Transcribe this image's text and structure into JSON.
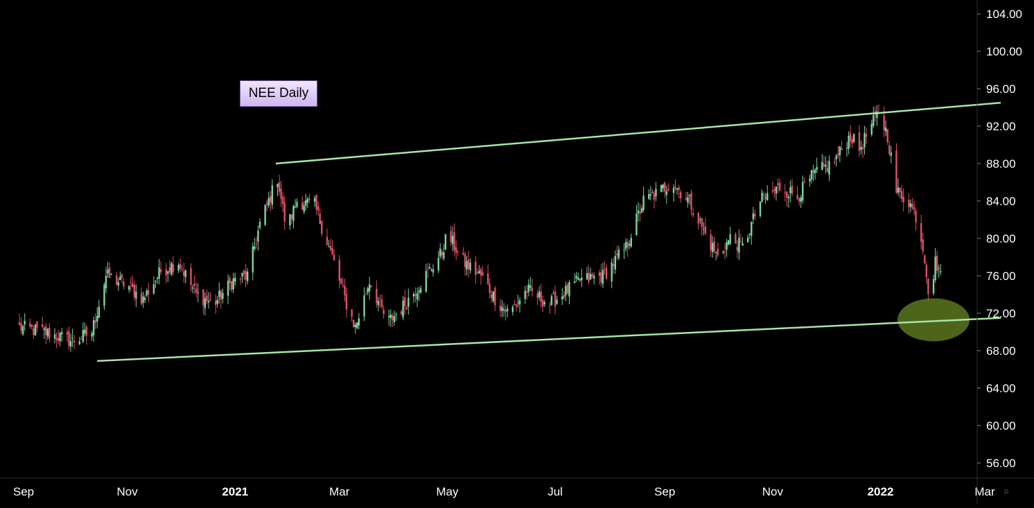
{
  "chart_data": {
    "type": "candlestick",
    "title": "NEE Daily",
    "x_tick_labels": [
      "Sep",
      "Nov",
      "2021",
      "Mar",
      "May",
      "Jul",
      "Sep",
      "Nov",
      "2022",
      "Mar"
    ],
    "y_tick_labels": [
      "104.00",
      "100.00",
      "96.00",
      "92.00",
      "88.00",
      "84.00",
      "80.00",
      "76.00",
      "72.00",
      "68.00",
      "64.00",
      "60.00",
      "56.00"
    ],
    "ylim": [
      53,
      105
    ],
    "x_range": [
      "2020-09-01",
      "2022-03-10"
    ],
    "grid": false,
    "colors": {
      "up": "#7fd6a0",
      "down": "#e0506a",
      "trendline": "#a8e6a8",
      "highlight": "#7a9a2a",
      "background": "#000000",
      "axis_text": "#ffffff"
    },
    "close_anchors": [
      [
        "2020-09-01",
        70.5
      ],
      [
        "2020-09-15",
        70.0
      ],
      [
        "2020-10-01",
        69.0
      ],
      [
        "2020-10-12",
        70.0
      ],
      [
        "2020-10-20",
        76.0
      ],
      [
        "2020-11-01",
        75.0
      ],
      [
        "2020-11-10",
        73.5
      ],
      [
        "2020-11-20",
        76.5
      ],
      [
        "2020-11-30",
        77.5
      ],
      [
        "2020-12-10",
        74.0
      ],
      [
        "2020-12-20",
        73.0
      ],
      [
        "2020-12-31",
        75.5
      ],
      [
        "2021-01-08",
        76.0
      ],
      [
        "2021-01-15",
        81.5
      ],
      [
        "2021-01-25",
        86.5
      ],
      [
        "2021-01-30",
        81.0
      ],
      [
        "2021-02-05",
        84.0
      ],
      [
        "2021-02-15",
        83.5
      ],
      [
        "2021-02-25",
        78.0
      ],
      [
        "2021-03-05",
        73.0
      ],
      [
        "2021-03-10",
        70.5
      ],
      [
        "2021-03-18",
        75.5
      ],
      [
        "2021-03-28",
        71.0
      ],
      [
        "2021-04-05",
        72.5
      ],
      [
        "2021-04-15",
        75.0
      ],
      [
        "2021-04-28",
        78.5
      ],
      [
        "2021-05-01",
        80.5
      ],
      [
        "2021-05-10",
        77.5
      ],
      [
        "2021-05-20",
        76.0
      ],
      [
        "2021-05-30",
        73.0
      ],
      [
        "2021-06-05",
        72.0
      ],
      [
        "2021-06-15",
        74.5
      ],
      [
        "2021-06-28",
        73.0
      ],
      [
        "2021-07-05",
        74.0
      ],
      [
        "2021-07-15",
        75.5
      ],
      [
        "2021-07-28",
        76.0
      ],
      [
        "2021-08-10",
        79.0
      ],
      [
        "2021-08-20",
        84.0
      ],
      [
        "2021-08-25",
        84.5
      ],
      [
        "2021-09-05",
        86.0
      ],
      [
        "2021-09-15",
        84.0
      ],
      [
        "2021-09-25",
        80.0
      ],
      [
        "2021-10-01",
        78.0
      ],
      [
        "2021-10-08",
        80.0
      ],
      [
        "2021-10-15",
        79.0
      ],
      [
        "2021-10-25",
        84.0
      ],
      [
        "2021-11-05",
        85.5
      ],
      [
        "2021-11-15",
        84.5
      ],
      [
        "2021-11-25",
        87.0
      ],
      [
        "2021-12-05",
        88.0
      ],
      [
        "2021-12-15",
        91.0
      ],
      [
        "2021-12-20",
        89.5
      ],
      [
        "2021-12-31",
        93.5
      ],
      [
        "2022-01-05",
        91.0
      ],
      [
        "2022-01-10",
        85.0
      ],
      [
        "2022-01-17",
        84.0
      ],
      [
        "2022-01-22",
        82.0
      ],
      [
        "2022-01-26",
        78.0
      ],
      [
        "2022-01-29",
        73.0
      ],
      [
        "2022-02-01",
        77.5
      ],
      [
        "2022-02-04",
        76.5
      ]
    ],
    "annotations": {
      "upper_trendline": {
        "from": [
          "2021-01-24",
          88.0
        ],
        "to": [
          "2022-03-10",
          94.5
        ]
      },
      "lower_trendline": {
        "from": [
          "2020-10-15",
          66.9
        ],
        "to": [
          "2022-03-10",
          71.5
        ]
      },
      "highlight_ellipse": {
        "center": [
          "2022-01-31",
          71.3
        ]
      }
    }
  }
}
